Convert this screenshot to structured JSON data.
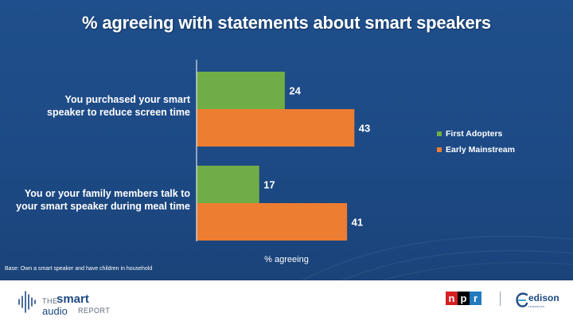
{
  "title": "% agreeing with statements about smart speakers",
  "base_note": "Base: Own a smart speaker and have children in household",
  "chart_data": {
    "type": "bar",
    "orientation": "horizontal",
    "categories": [
      [
        "You purchased your smart",
        "speaker to reduce screen time"
      ],
      [
        "You or your family members talk to",
        "your smart speaker during meal time"
      ]
    ],
    "series": [
      {
        "name": "First Adopters",
        "values": [
          24,
          17
        ],
        "color": "#71ad47"
      },
      {
        "name": "Early Mainstream",
        "values": [
          43,
          41
        ],
        "color": "#ed7d31"
      }
    ],
    "xlabel": "% agreeing",
    "xlim": [
      0,
      100
    ],
    "legend_position": "right",
    "grid": false,
    "data_labels": true
  },
  "footer": {
    "smart_audio_logo": {
      "the": "THE",
      "smart": "smart",
      "audio": "audio",
      "report": "REPORT"
    },
    "npr_logo": {
      "n": "n",
      "p": "p",
      "r": "r"
    },
    "edison_logo": {
      "name": "edison",
      "sub": "research"
    }
  }
}
